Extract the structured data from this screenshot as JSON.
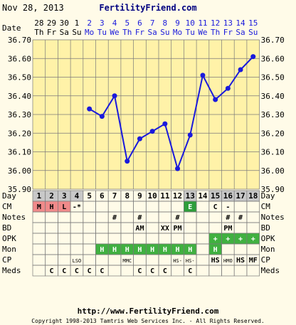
{
  "header": {
    "date": "Nov 28, 2013",
    "site": "FertilityFriend.com"
  },
  "labels": {
    "date": "Date",
    "day": "Day",
    "rows": [
      "CM",
      "Notes",
      "BD",
      "OPK",
      "Mon",
      "CP",
      "Meds"
    ]
  },
  "columns": {
    "dates": [
      "28",
      "29",
      "30",
      "1",
      "2",
      "3",
      "4",
      "5",
      "6",
      "7",
      "8",
      "9",
      "10",
      "11",
      "12",
      "13",
      "14",
      "15"
    ],
    "weekdays": [
      "Th",
      "Fr",
      "Sa",
      "Su",
      "Mo",
      "Tu",
      "We",
      "Th",
      "Fr",
      "Sa",
      "Su",
      "Mo",
      "Tu",
      "We",
      "Th",
      "Fr",
      "Sa",
      "Su"
    ],
    "days": [
      "1",
      "2",
      "3",
      "4",
      "5",
      "6",
      "7",
      "8",
      "9",
      "10",
      "11",
      "12",
      "13",
      "14",
      "15",
      "16",
      "17",
      "18"
    ],
    "date_highlight": [
      false,
      false,
      false,
      false,
      true,
      true,
      true,
      true,
      true,
      true,
      true,
      true,
      true,
      true,
      true,
      true,
      true,
      true
    ],
    "day_grey": [
      true,
      true,
      true,
      true,
      false,
      false,
      false,
      false,
      false,
      false,
      false,
      false,
      true,
      false,
      true,
      true,
      true,
      true
    ]
  },
  "rows": {
    "CM": [
      "M",
      "H",
      "L",
      "-*",
      "",
      "",
      "",
      "",
      "",
      "",
      "",
      "",
      "E",
      "",
      "C",
      "-",
      "",
      ""
    ],
    "Notes": [
      "",
      "",
      "",
      "",
      "",
      "",
      "#",
      "",
      "#",
      "",
      "",
      "#",
      "",
      "",
      "",
      "#",
      "#",
      ""
    ],
    "BD": [
      "",
      "",
      "",
      "",
      "",
      "",
      "",
      "",
      "AM",
      "",
      "XX",
      "PM",
      "",
      "",
      "",
      "PM",
      "",
      ""
    ],
    "OPK": [
      "",
      "",
      "",
      "",
      "",
      "",
      "",
      "",
      "",
      "",
      "",
      "",
      "",
      "",
      "+",
      "+",
      "+",
      "+"
    ],
    "Mon": [
      "",
      "",
      "",
      "",
      "",
      "H",
      "H",
      "H",
      "H",
      "H",
      "H",
      "H",
      "H",
      "",
      "H",
      "",
      "",
      ""
    ],
    "CP": [
      "",
      "",
      "",
      "LSO",
      "",
      "",
      "",
      "MMC",
      "",
      "",
      "",
      "HS-",
      "HS-",
      "",
      "HS",
      "HMO",
      "HS",
      "MF"
    ],
    "Meds": [
      "",
      "C",
      "C",
      "C",
      "C",
      "C",
      "",
      "",
      "C",
      "C",
      "C",
      "",
      "C",
      "",
      "",
      "",
      "",
      ""
    ]
  },
  "chart_data": {
    "type": "line",
    "ylim": [
      35.9,
      36.7
    ],
    "yticks": [
      "36.70",
      "36.60",
      "36.50",
      "36.40",
      "36.30",
      "36.20",
      "36.10",
      "36.00",
      "35.90"
    ],
    "grid": true,
    "series": [
      {
        "values": [
          null,
          null,
          null,
          null,
          36.33,
          36.29,
          36.4,
          36.05,
          36.17,
          36.21,
          36.25,
          36.01,
          36.19,
          36.51,
          36.38,
          36.44,
          36.54,
          36.61
        ]
      }
    ]
  },
  "colors": {
    "line": "#1a1adc",
    "grid": "#7a7a7a",
    "plot_bg": "#fff2a8",
    "grey": "#c8c8c8",
    "cm_M": "#f08a8a",
    "cm_E": "#2e9e3a",
    "green": "#40b040",
    "blue": "#1a1adc",
    "url_blue": "#000080"
  },
  "footer": {
    "url": "http://www.FertilityFriend.com",
    "copyright": "Copyright 1998-2013 Tamtris Web Services Inc. - All Rights Reserved."
  }
}
